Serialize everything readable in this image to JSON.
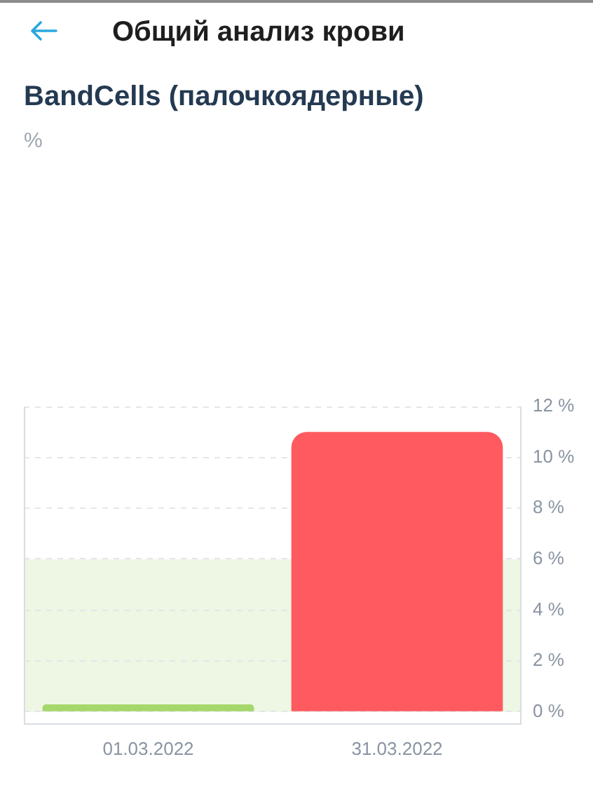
{
  "chart_data": {
    "type": "bar",
    "title": "Общий анализ крови",
    "subtitle": "BandCells (палочкоядерные)",
    "annotations": [
      "%"
    ],
    "categories": [
      "01.03.2022",
      "31.03.2022"
    ],
    "values": [
      0.3,
      11
    ],
    "colors": [
      "#a5d76b",
      "#ff5a60"
    ],
    "ylim": [
      -0.5,
      12
    ],
    "yticks": [
      {
        "value": 0,
        "label": "0 %"
      },
      {
        "value": 2,
        "label": "2 %"
      },
      {
        "value": 4,
        "label": "4 %"
      },
      {
        "value": 6,
        "label": "6 %"
      },
      {
        "value": 8,
        "label": "8 %"
      },
      {
        "value": 10,
        "label": "10 %"
      },
      {
        "value": 12,
        "label": "12 %"
      }
    ],
    "grid": "y",
    "bands": [
      {
        "axis": "y",
        "from": 0,
        "to": 6,
        "color": "#eef6e4"
      }
    ]
  }
}
